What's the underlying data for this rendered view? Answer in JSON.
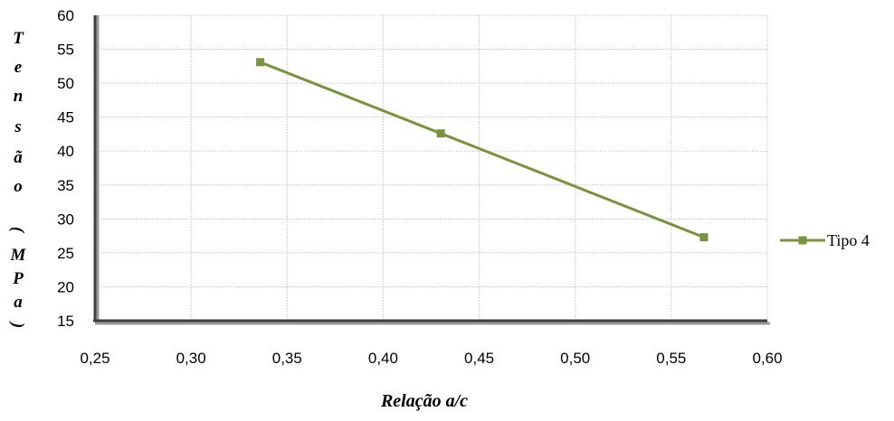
{
  "chart_data": {
    "type": "line",
    "x_ticks": [
      "0,25",
      "0,30",
      "0,35",
      "0,40",
      "0,45",
      "0,50",
      "0,55",
      "0,60"
    ],
    "y_ticks": [
      "15",
      "20",
      "25",
      "30",
      "35",
      "40",
      "45",
      "50",
      "55",
      "60"
    ],
    "xlim": [
      0.25,
      0.6
    ],
    "ylim": [
      15,
      60
    ],
    "grid": true,
    "xlabel": "Relação  a/c",
    "ylabel": "Tensão (MPa)",
    "legend_position": "right",
    "series": [
      {
        "name": "Tipo 4",
        "color": "#77933c",
        "marker": "square",
        "x": [
          0.336,
          0.43,
          0.567
        ],
        "y": [
          53.1,
          42.6,
          27.3
        ]
      }
    ]
  }
}
